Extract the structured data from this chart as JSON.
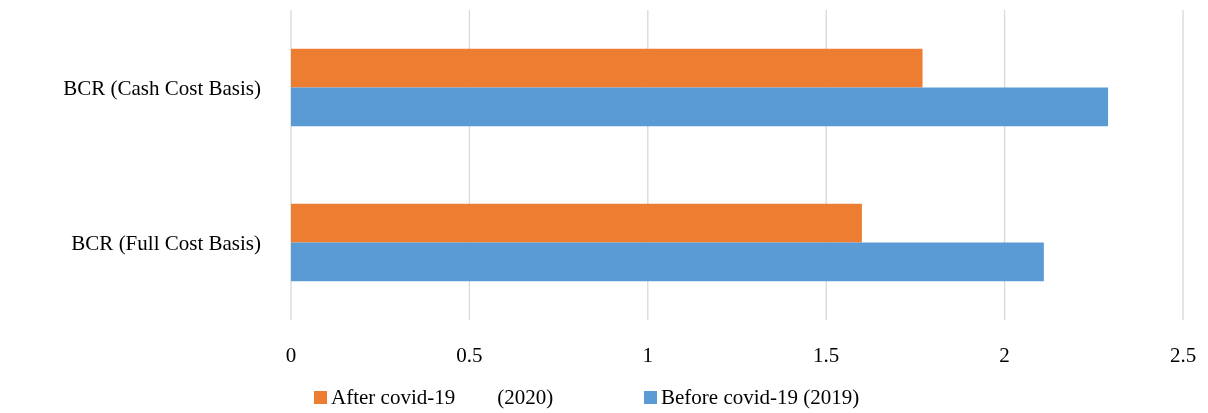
{
  "chart_data": {
    "type": "bar",
    "orientation": "horizontal",
    "categories": [
      "BCR (Cash Cost Basis)",
      "BCR (Full Cost Basis)"
    ],
    "series": [
      {
        "name": "After covid-19        (2020)",
        "color": "#ed7d31",
        "values": [
          1.77,
          1.6
        ]
      },
      {
        "name": "Before covid-19 (2019)",
        "color": "#5b9bd5",
        "values": [
          2.29,
          2.11
        ]
      }
    ],
    "xlim": [
      0,
      2.5
    ],
    "xticks": [
      0,
      0.5,
      1,
      1.5,
      2,
      2.5
    ],
    "grid": "x",
    "legend": "bottom"
  }
}
